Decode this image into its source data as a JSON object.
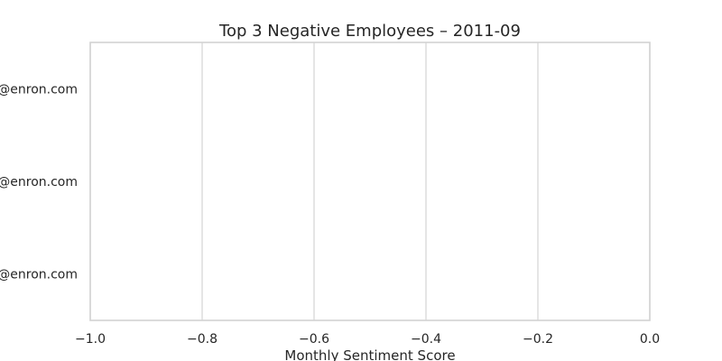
{
  "chart_data": {
    "type": "bar",
    "orientation": "horizontal",
    "title": "Top 3 Negative Employees – 2011-09",
    "xlabel": "Monthly Sentiment Score",
    "ylabel": "",
    "categories": [
      "@enron.com",
      "@enron.com",
      "@enron.com"
    ],
    "values": [
      0,
      0,
      0
    ],
    "xlim": [
      -1.0,
      0.0
    ],
    "xticks": [
      -1.0,
      -0.8,
      -0.6,
      -0.4,
      -0.2,
      0.0
    ],
    "xtick_labels": [
      "−1.0",
      "−0.8",
      "−0.6",
      "−0.4",
      "−0.2",
      "0.0"
    ],
    "grid": "vertical",
    "legend": "none",
    "colors": {
      "grid": "#d5d5d5",
      "frame": "#d2d2d2",
      "text": "#262626"
    }
  }
}
